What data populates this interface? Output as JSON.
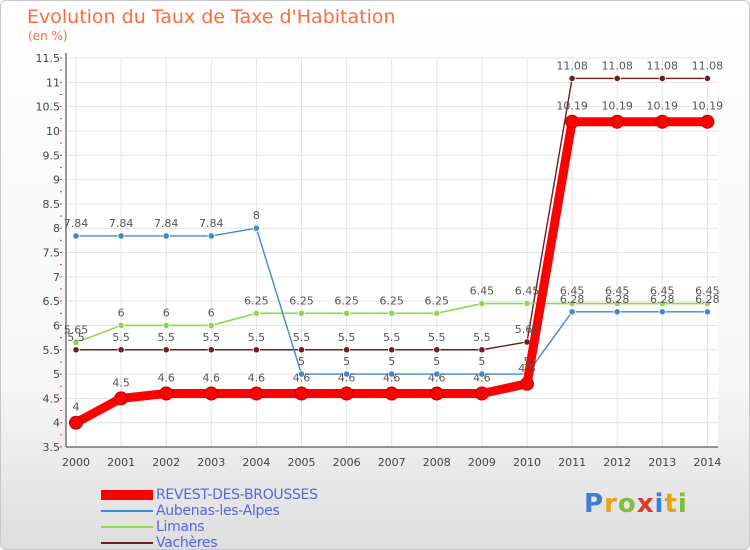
{
  "header": {
    "title": "Evolution du Taux de Taxe d'Habitation",
    "subtitle": "(en %)"
  },
  "logo": {
    "text": "Proxiti",
    "letters": [
      "P",
      "r",
      "o",
      "x",
      "i",
      "t",
      "i"
    ]
  },
  "chart_data": {
    "type": "line",
    "title": "Evolution du Taux de Taxe d'Habitation",
    "subtitle": "(en %)",
    "xlabel": "",
    "ylabel": "",
    "x": [
      "2000",
      "2001",
      "2002",
      "2003",
      "2004",
      "2005",
      "2006",
      "2007",
      "2008",
      "2009",
      "2010",
      "2011",
      "2012",
      "2013",
      "2014"
    ],
    "yticks": [
      "3.5",
      "4",
      "4.5",
      "5",
      "5.5",
      "6",
      "6.5",
      "7",
      "7.5",
      "8",
      "8.5",
      "9",
      "9.5",
      "10",
      "10.5",
      "11",
      "11.5"
    ],
    "ylim": [
      3.5,
      11.5
    ],
    "grid": true,
    "legend_position": "bottom-left",
    "series": [
      {
        "name": "REVEST-DES-BROUSSES",
        "color": "#ff0000",
        "values": [
          4,
          4.5,
          4.6,
          4.6,
          4.6,
          4.6,
          4.6,
          4.6,
          4.6,
          4.6,
          4.8,
          10.19,
          10.19,
          10.19,
          10.19
        ],
        "labels": [
          "4",
          "4.5",
          "4.6",
          "4.6",
          "4.6",
          "4.6",
          "4.6",
          "4.6",
          "4.6",
          "4.6",
          "4.8",
          "10.19",
          "10.19",
          "10.19",
          "10.19"
        ]
      },
      {
        "name": "Aubenas-les-Alpes",
        "color": "#3d8ad1",
        "values": [
          7.84,
          7.84,
          7.84,
          7.84,
          8,
          5,
          5,
          5,
          5,
          5,
          5,
          6.28,
          6.28,
          6.28,
          6.28
        ],
        "labels": [
          "7.84",
          "7.84",
          "7.84",
          "7.84",
          "8",
          "5",
          "5",
          "5",
          "5",
          "5",
          "5",
          "6.28",
          "6.28",
          "6.28",
          "6.28"
        ]
      },
      {
        "name": "Limans",
        "color": "#8ed84f",
        "values": [
          5.65,
          6,
          6,
          6,
          6.25,
          6.25,
          6.25,
          6.25,
          6.25,
          6.45,
          6.45,
          6.45,
          6.45,
          6.45,
          6.45
        ],
        "labels": [
          "5.65",
          "6",
          "6",
          "6",
          "6.25",
          "6.25",
          "6.25",
          "6.25",
          "6.25",
          "6.45",
          "6.45",
          "6.45",
          "6.45",
          "6.45",
          "6.45"
        ]
      },
      {
        "name": "Vachères",
        "color": "#6b1f22",
        "values": [
          5.5,
          5.5,
          5.5,
          5.5,
          5.5,
          5.5,
          5.5,
          5.5,
          5.5,
          5.5,
          5.66,
          11.08,
          11.08,
          11.08,
          11.08
        ],
        "labels": [
          "5.5",
          "5.5",
          "5.5",
          "5.5",
          "5.5",
          "5.5",
          "5.5",
          "5.5",
          "5.5",
          "5.5",
          "5.66",
          "11.08",
          "11.08",
          "11.08",
          "11.08"
        ]
      }
    ]
  }
}
